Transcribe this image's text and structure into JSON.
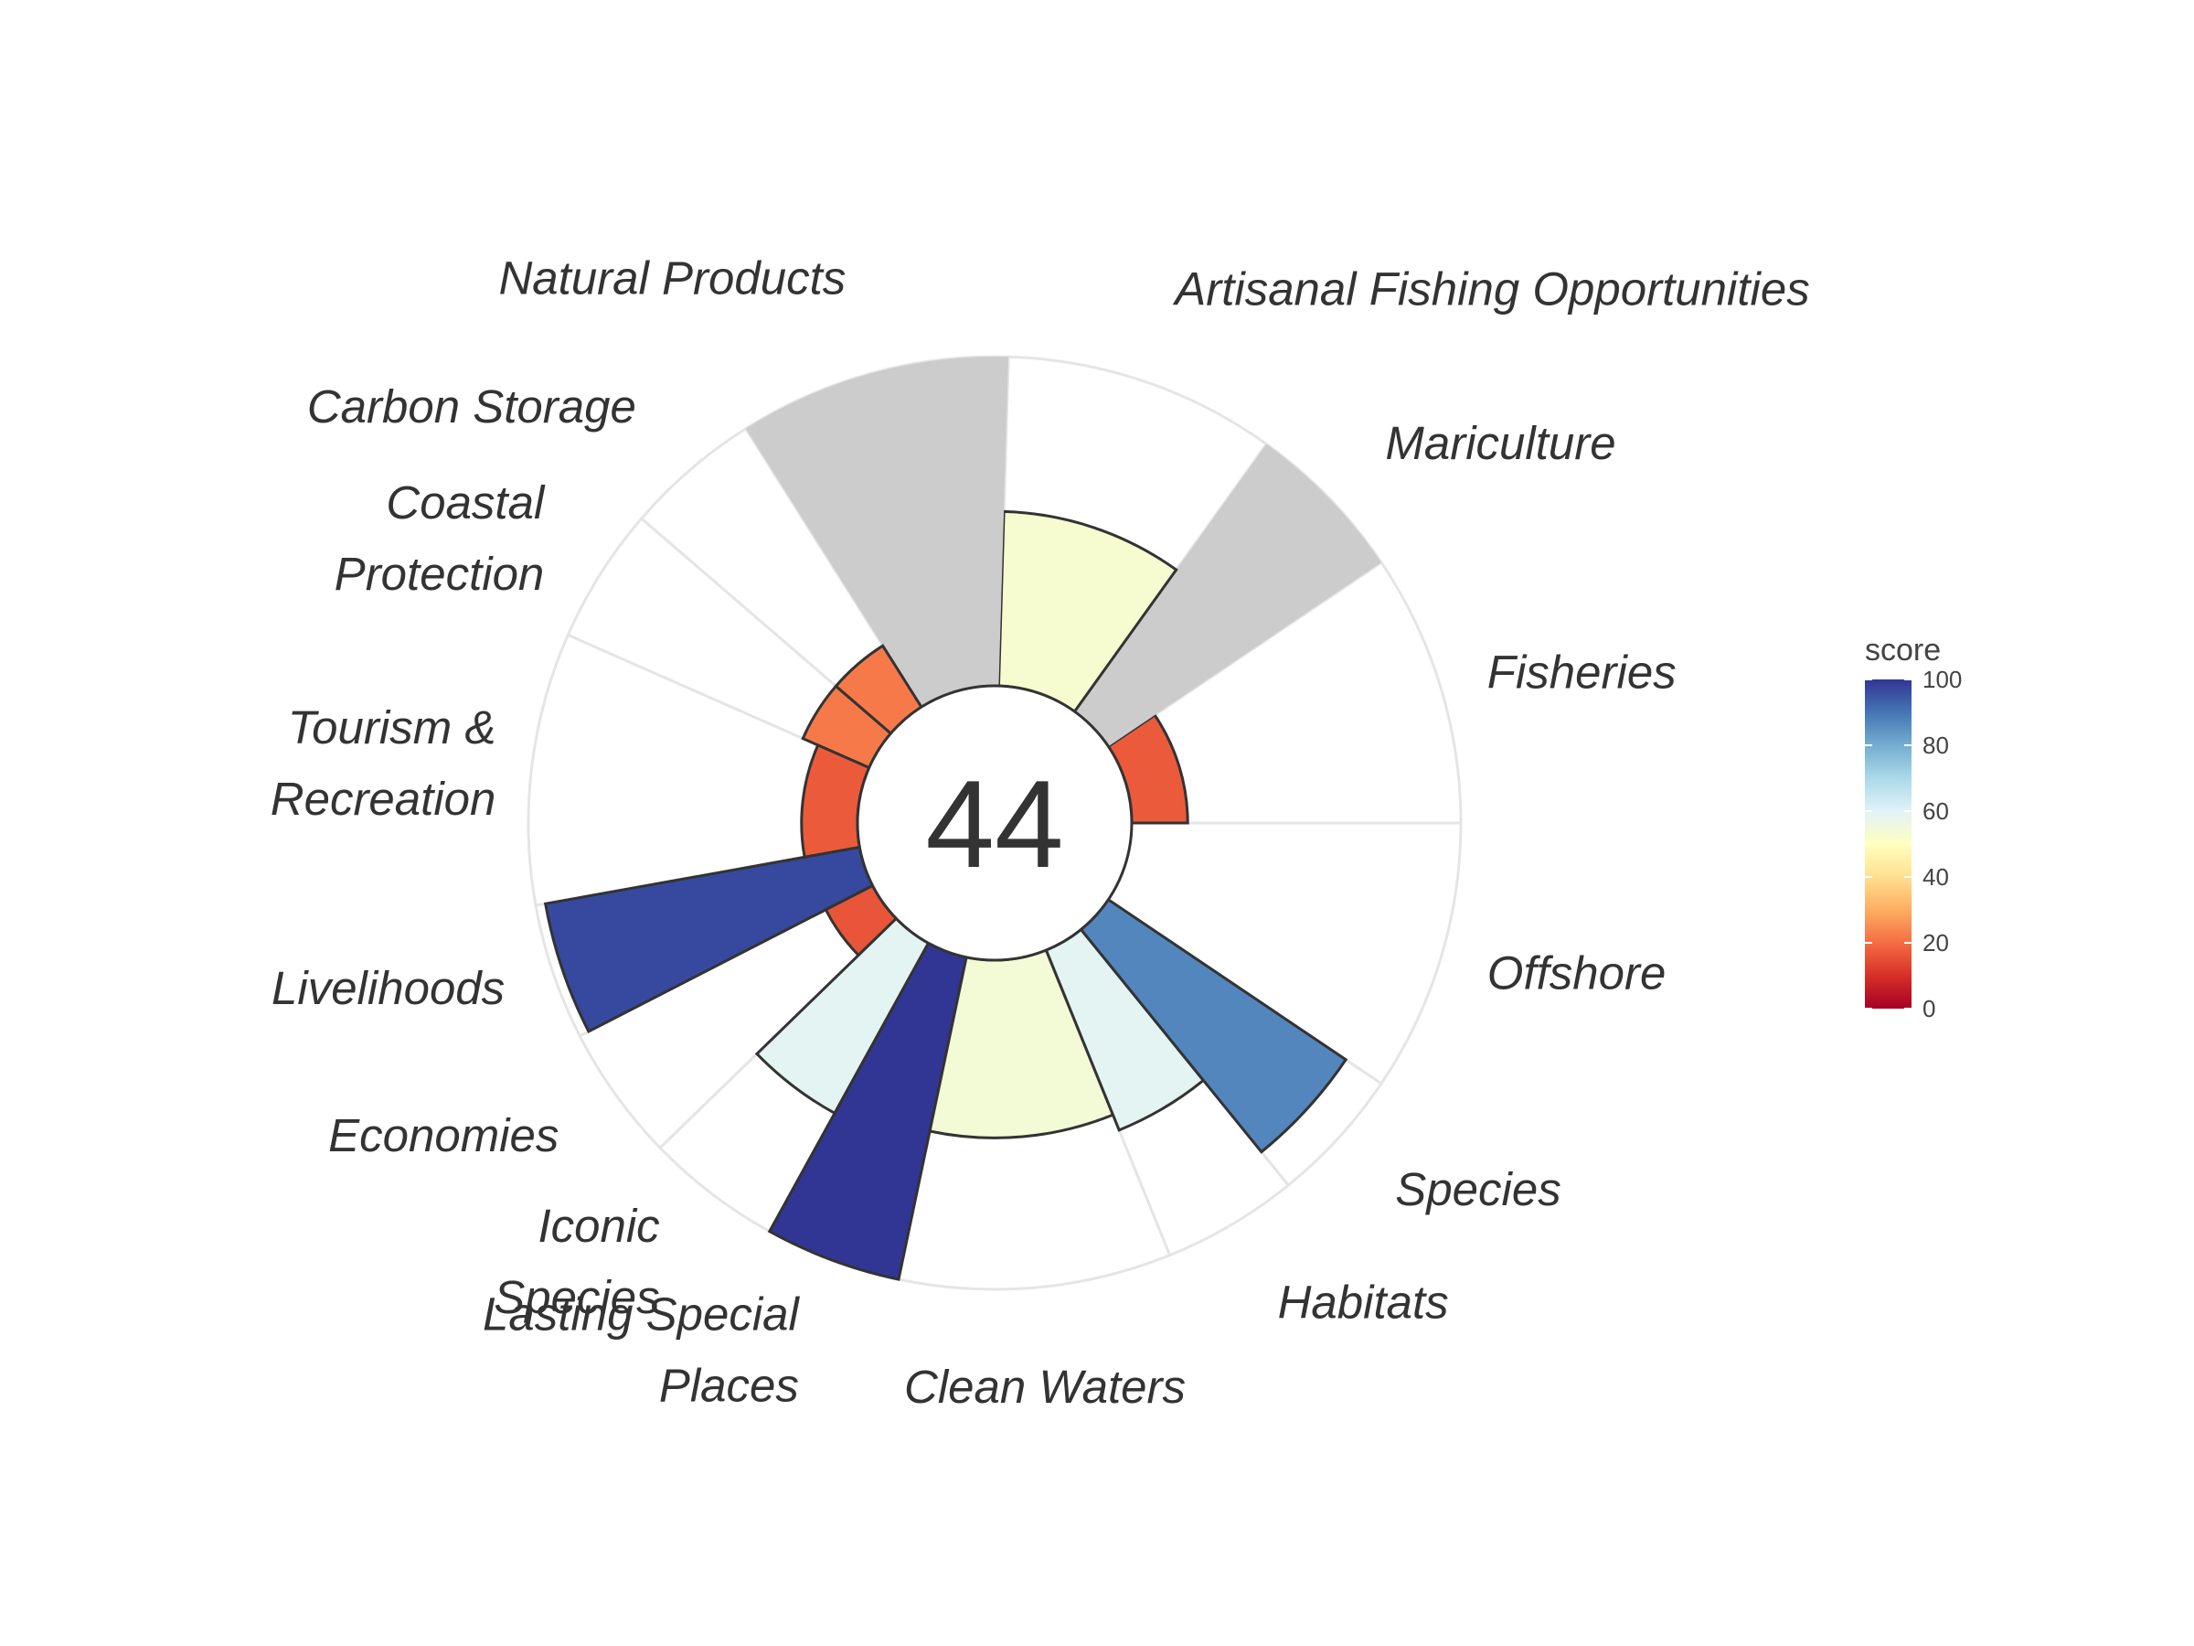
{
  "chart_data": {
    "type": "flower",
    "center_value": "44",
    "r_max": 100,
    "petals": [
      {
        "label": [
          "Fisheries"
        ],
        "score": 17,
        "weight": 1,
        "na": false
      },
      {
        "label": [
          "Mariculture"
        ],
        "score": 100,
        "weight": 0.6,
        "na": true
      },
      {
        "label": [
          "Artisanal Fishing Opportunities"
        ],
        "score": 53,
        "weight": 1,
        "na": false
      },
      {
        "label": [
          "Natural Products"
        ],
        "score": 100,
        "weight": 1,
        "na": true
      },
      {
        "label": [
          "Carbon Storage"
        ],
        "score": 22,
        "weight": 0.5,
        "na": false
      },
      {
        "label": [
          "Coastal",
          "Protection"
        ],
        "score": 22,
        "weight": 0.5,
        "na": false
      },
      {
        "label": [
          "Tourism &",
          "Recreation"
        ],
        "score": 17,
        "weight": 1,
        "na": false
      },
      {
        "label": [
          "Livelihoods"
        ],
        "score": 97,
        "weight": 0.5,
        "na": false
      },
      {
        "label": [
          "Economies"
        ],
        "score": 16,
        "weight": 0.5,
        "na": false
      },
      {
        "label": [
          "Iconic",
          "Species"
        ],
        "score": 59,
        "weight": 0.5,
        "na": false
      },
      {
        "label": [
          "Lasting Special",
          "Places"
        ],
        "score": 100,
        "weight": 0.5,
        "na": false
      },
      {
        "label": [
          "Clean Waters"
        ],
        "score": 54,
        "weight": 1,
        "na": false
      },
      {
        "label": [
          "Habitats"
        ],
        "score": 59,
        "weight": 0.5,
        "na": false
      },
      {
        "label": [
          "Species"
        ],
        "score": 87,
        "weight": 0.5,
        "na": false
      },
      {
        "label": [
          "Offshore"
        ],
        "score": 0,
        "weight": 1,
        "na": false
      }
    ],
    "legend": {
      "title": "score",
      "ticks": [
        "0",
        "20",
        "40",
        "60",
        "80",
        "100"
      ],
      "colors": [
        "#a50026",
        "#d73027",
        "#f46d43",
        "#fdae61",
        "#fee090",
        "#ffffbf",
        "#e0f3f8",
        "#abd9e9",
        "#74add1",
        "#4575b4",
        "#313695"
      ]
    },
    "na_color": "#cccccc"
  }
}
